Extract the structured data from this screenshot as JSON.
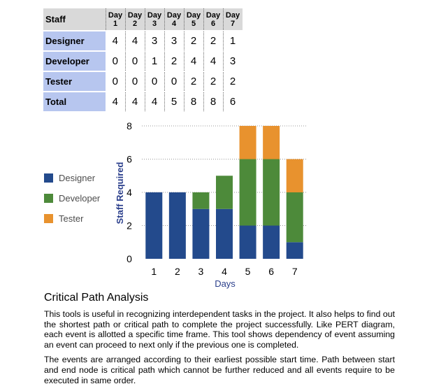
{
  "table": {
    "header_label": "Staff",
    "day_headers": [
      {
        "top": "Day",
        "bottom": "1"
      },
      {
        "top": "Day",
        "bottom": "2"
      },
      {
        "top": "Day",
        "bottom": "3"
      },
      {
        "top": "Day",
        "bottom": "4"
      },
      {
        "top": "Day",
        "bottom": "5"
      },
      {
        "top": "Day",
        "bottom": "6"
      },
      {
        "top": "Day",
        "bottom": "7"
      }
    ],
    "rows": [
      {
        "label": "Designer",
        "values": [
          "4",
          "4",
          "3",
          "3",
          "2",
          "2",
          "1"
        ]
      },
      {
        "label": "Developer",
        "values": [
          "0",
          "0",
          "1",
          "2",
          "4",
          "4",
          "3"
        ]
      },
      {
        "label": "Tester",
        "values": [
          "0",
          "0",
          "0",
          "0",
          "2",
          "2",
          "2"
        ]
      },
      {
        "label": "Total",
        "values": [
          "4",
          "4",
          "4",
          "5",
          "8",
          "8",
          "6"
        ]
      }
    ]
  },
  "legend": [
    {
      "label": "Designer",
      "color": "#234a8c"
    },
    {
      "label": "Developer",
      "color": "#4d8a3a"
    },
    {
      "label": "Tester",
      "color": "#e8922e"
    }
  ],
  "chart_data": {
    "type": "bar",
    "stacked": true,
    "categories": [
      "1",
      "2",
      "3",
      "4",
      "5",
      "6",
      "7"
    ],
    "series": [
      {
        "name": "Designer",
        "color": "#234a8c",
        "values": [
          4,
          4,
          3,
          3,
          2,
          2,
          1
        ]
      },
      {
        "name": "Developer",
        "color": "#4d8a3a",
        "values": [
          0,
          0,
          1,
          2,
          4,
          4,
          3
        ]
      },
      {
        "name": "Tester",
        "color": "#e8922e",
        "values": [
          0,
          0,
          0,
          0,
          2,
          2,
          2
        ]
      }
    ],
    "xlabel": "Days",
    "ylabel": "Staff Required",
    "ylim": [
      0,
      8
    ],
    "yticks": [
      "0",
      "2",
      "4",
      "6",
      "8"
    ],
    "grid": true,
    "legend_position": "left"
  },
  "article": {
    "title": "Critical Path Analysis",
    "paragraphs": [
      "This tools is useful in recognizing interdependent tasks in the project. It also helps to find out the shortest path or critical path to complete the project successfully. Like PERT diagram, each event is allotted a specific time frame. This tool shows dependency of event assuming an event can proceed to next only if the previous one is completed.",
      "The events are arranged according to their earliest possible start time. Path between start and end node is critical path which cannot be further reduced and all events require to be executed in same order."
    ]
  }
}
